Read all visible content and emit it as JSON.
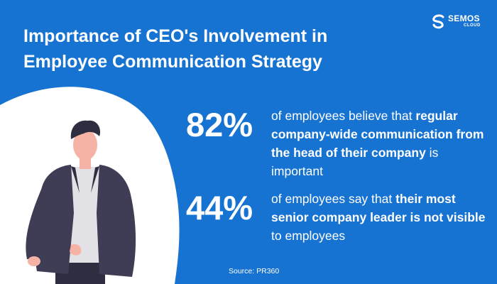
{
  "title": "Importance of CEO's Involvement in Employee Communication Strategy",
  "logo": {
    "name": "SEMOS",
    "sub": "CLOUD"
  },
  "stats": [
    {
      "value": "82%",
      "text_before": "of employees believe that ",
      "text_bold": "regular company-wide communication from the head of their company",
      "text_after": " is important"
    },
    {
      "value": "44%",
      "text_before": "of employees say that ",
      "text_bold": "their most senior company leader is not visible",
      "text_after": " to employees"
    }
  ],
  "source": "Source: PR360",
  "colors": {
    "background": "#1773d1",
    "blob": "#ffffff",
    "text": "#ffffff"
  },
  "illustration": "person-standing-hand-in-pocket"
}
